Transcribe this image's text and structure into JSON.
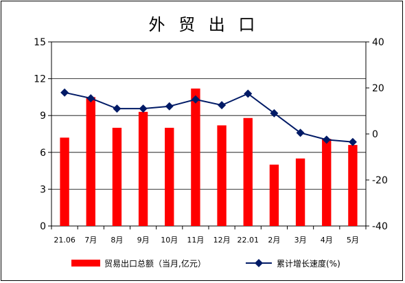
{
  "chart_data": {
    "type": "bar-line-combo",
    "title": "外 贸 出 口",
    "categories": [
      "21.06",
      "7月",
      "8月",
      "9月",
      "10月",
      "11月",
      "12月",
      "22.01",
      "2月",
      "3月",
      "4月",
      "5月"
    ],
    "series": [
      {
        "name": "贸易出口总额（当月,亿元）",
        "type": "bar",
        "axis": "left",
        "color": "#ff0000",
        "values": [
          7.2,
          10.5,
          8.0,
          9.3,
          8.0,
          11.2,
          8.2,
          8.8,
          5.0,
          5.5,
          7.1,
          6.6
        ]
      },
      {
        "name": "累计增长速度(%)",
        "type": "line",
        "axis": "right",
        "color": "#001a66",
        "marker": "diamond",
        "values": [
          18.0,
          15.5,
          11.0,
          11.0,
          12.0,
          15.0,
          12.5,
          17.5,
          9.0,
          0.5,
          -2.5,
          -3.5
        ]
      }
    ],
    "y_left": {
      "min": 0,
      "max": 15,
      "ticks": [
        0,
        3,
        6,
        9,
        12,
        15
      ]
    },
    "y_right": {
      "min": -40,
      "max": 40,
      "ticks": [
        -40,
        -20,
        0,
        20,
        40
      ]
    },
    "grid": true,
    "legend_position": "bottom"
  },
  "tick_labels": {
    "left": [
      "0",
      "3",
      "6",
      "9",
      "12",
      "15"
    ],
    "right": [
      "-40",
      "-20",
      "0",
      "20",
      "40"
    ]
  },
  "legend": {
    "bar_label": "贸易出口总额（当月,亿元）",
    "line_label": "累计增长速度(%)"
  }
}
